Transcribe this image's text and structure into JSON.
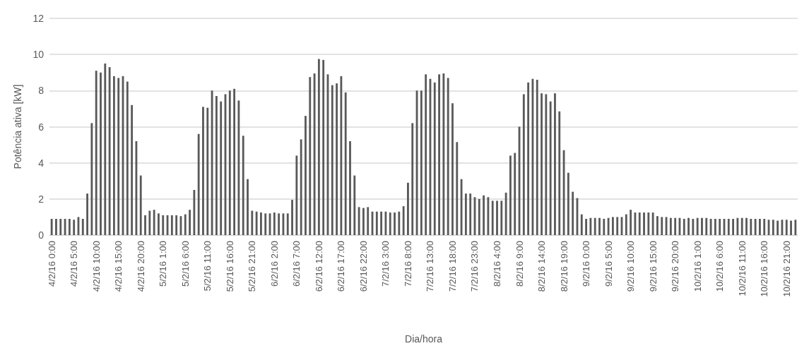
{
  "chart_data": {
    "type": "bar",
    "xlabel": "Dia/hora",
    "ylabel": "Potência ativa [kW]",
    "categories": [
      "4/2/16 0:00",
      null,
      null,
      null,
      null,
      "4/2/16 5:00",
      null,
      null,
      null,
      null,
      "4/2/16 10:00",
      null,
      null,
      null,
      null,
      "4/2/16 15:00",
      null,
      null,
      null,
      null,
      "4/2/16 20:00",
      null,
      null,
      null,
      null,
      "5/2/16 1:00",
      null,
      null,
      null,
      null,
      "5/2/16 6:00",
      null,
      null,
      null,
      null,
      "5/2/16 11:00",
      null,
      null,
      null,
      null,
      "5/2/16 16:00",
      null,
      null,
      null,
      null,
      "5/2/16 21:00",
      null,
      null,
      null,
      null,
      "6/2/16 2:00",
      null,
      null,
      null,
      null,
      "6/2/16 7:00",
      null,
      null,
      null,
      null,
      "6/2/16 12:00",
      null,
      null,
      null,
      null,
      "6/2/16 17:00",
      null,
      null,
      null,
      null,
      "6/2/16 22:00",
      null,
      null,
      null,
      null,
      "7/2/16 3:00",
      null,
      null,
      null,
      null,
      "7/2/16 8:00",
      null,
      null,
      null,
      null,
      "7/2/16 13:00",
      null,
      null,
      null,
      null,
      "7/2/16 18:00",
      null,
      null,
      null,
      null,
      "7/2/16 23:00",
      null,
      null,
      null,
      null,
      "8/2/16 4:00",
      null,
      null,
      null,
      null,
      "8/2/16 9:00",
      null,
      null,
      null,
      null,
      "8/2/16 14:00",
      null,
      null,
      null,
      null,
      "8/2/16 19:00",
      null,
      null,
      null,
      null,
      "9/2/16 0:00",
      null,
      null,
      null,
      null,
      "9/2/16 5:00",
      null,
      null,
      null,
      null,
      "9/2/16 10:00",
      null,
      null,
      null,
      null,
      "9/2/16 15:00",
      null,
      null,
      null,
      null,
      "9/2/16 20:00",
      null,
      null,
      null,
      null,
      "10/2/16 1:00",
      null,
      null,
      null,
      null,
      "10/2/16 6:00",
      null,
      null,
      null,
      null,
      "10/2/16 11:00",
      null,
      null,
      null,
      null,
      "10/2/16 16:00",
      null,
      null,
      null,
      null,
      "10/2/16 21:00",
      null,
      null
    ],
    "values": [
      0.9,
      0.9,
      0.9,
      0.9,
      0.9,
      0.85,
      1.0,
      0.9,
      2.3,
      6.2,
      9.1,
      9.0,
      9.5,
      9.3,
      8.8,
      8.7,
      8.8,
      8.5,
      7.2,
      5.2,
      3.3,
      1.1,
      1.35,
      1.4,
      1.2,
      1.1,
      1.1,
      1.1,
      1.1,
      1.05,
      1.15,
      1.4,
      2.5,
      5.6,
      7.1,
      7.05,
      8.0,
      7.7,
      7.4,
      7.8,
      8.0,
      8.1,
      7.45,
      5.5,
      3.1,
      1.35,
      1.3,
      1.25,
      1.2,
      1.2,
      1.25,
      1.2,
      1.2,
      1.2,
      1.95,
      4.4,
      5.3,
      6.6,
      8.75,
      8.95,
      9.75,
      9.7,
      8.9,
      8.3,
      8.4,
      8.8,
      7.9,
      5.2,
      3.3,
      1.55,
      1.5,
      1.55,
      1.3,
      1.3,
      1.3,
      1.3,
      1.25,
      1.25,
      1.3,
      1.6,
      2.9,
      6.2,
      8.0,
      8.0,
      8.9,
      8.65,
      8.45,
      8.9,
      8.95,
      8.7,
      7.3,
      5.15,
      3.1,
      2.3,
      2.3,
      2.1,
      2.0,
      2.2,
      2.1,
      1.9,
      1.9,
      1.9,
      2.35,
      4.4,
      4.55,
      6.0,
      7.8,
      8.45,
      8.65,
      8.6,
      7.85,
      7.8,
      7.4,
      7.85,
      6.85,
      4.7,
      3.45,
      2.4,
      2.05,
      1.15,
      0.9,
      0.95,
      0.95,
      0.95,
      0.9,
      0.95,
      1.0,
      1.0,
      1.0,
      1.15,
      1.4,
      1.25,
      1.25,
      1.25,
      1.25,
      1.25,
      1.05,
      1.0,
      1.0,
      0.95,
      0.95,
      0.95,
      0.9,
      0.95,
      0.9,
      0.95,
      0.95,
      0.95,
      0.9,
      0.9,
      0.9,
      0.9,
      0.9,
      0.9,
      0.95,
      0.95,
      0.95,
      0.9,
      0.9,
      0.9,
      0.9,
      0.85,
      0.85,
      0.8,
      0.85,
      0.85,
      0.8,
      0.85
    ],
    "color": "#595959",
    "ylim": [
      0,
      12
    ],
    "yticks": [
      0,
      2,
      4,
      6,
      8,
      10,
      12
    ],
    "grid": "y"
  }
}
